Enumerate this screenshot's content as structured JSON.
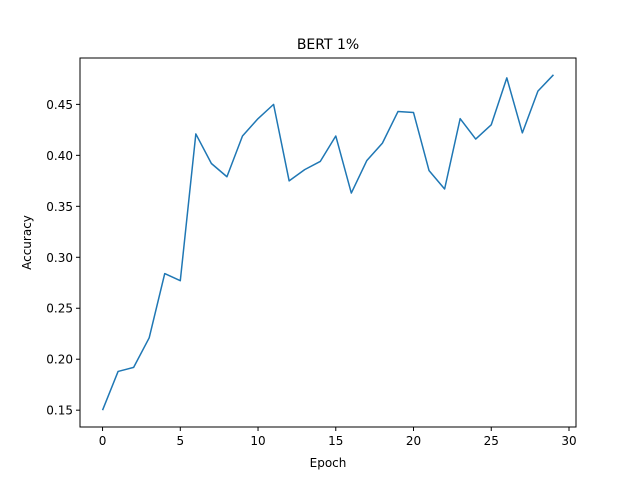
{
  "chart_data": {
    "type": "line",
    "title": "BERT 1%",
    "xlabel": "Epoch",
    "ylabel": "Accuracy",
    "xlim": [
      -1.45,
      30.45
    ],
    "ylim": [
      0.1335,
      0.4955
    ],
    "xticks": [
      0,
      5,
      10,
      15,
      20,
      25,
      30
    ],
    "xtick_labels": [
      "0",
      "5",
      "10",
      "15",
      "20",
      "25",
      "30"
    ],
    "yticks": [
      0.15,
      0.2,
      0.25,
      0.3,
      0.35,
      0.4,
      0.45
    ],
    "ytick_labels": [
      "0.15",
      "0.20",
      "0.25",
      "0.30",
      "0.35",
      "0.40",
      "0.45"
    ],
    "grid": false,
    "legend": "none",
    "series": [
      {
        "color": "#1f77b4",
        "x": [
          0,
          1,
          2,
          3,
          4,
          5,
          6,
          7,
          8,
          9,
          10,
          11,
          12,
          13,
          14,
          15,
          16,
          17,
          18,
          19,
          20,
          21,
          22,
          23,
          24,
          25,
          26,
          27,
          28,
          29
        ],
        "values": [
          0.15,
          0.188,
          0.192,
          0.221,
          0.284,
          0.277,
          0.421,
          0.392,
          0.379,
          0.419,
          0.436,
          0.45,
          0.375,
          0.386,
          0.394,
          0.419,
          0.363,
          0.395,
          0.412,
          0.443,
          0.442,
          0.385,
          0.367,
          0.436,
          0.416,
          0.43,
          0.476,
          0.422,
          0.463,
          0.479
        ]
      }
    ]
  }
}
